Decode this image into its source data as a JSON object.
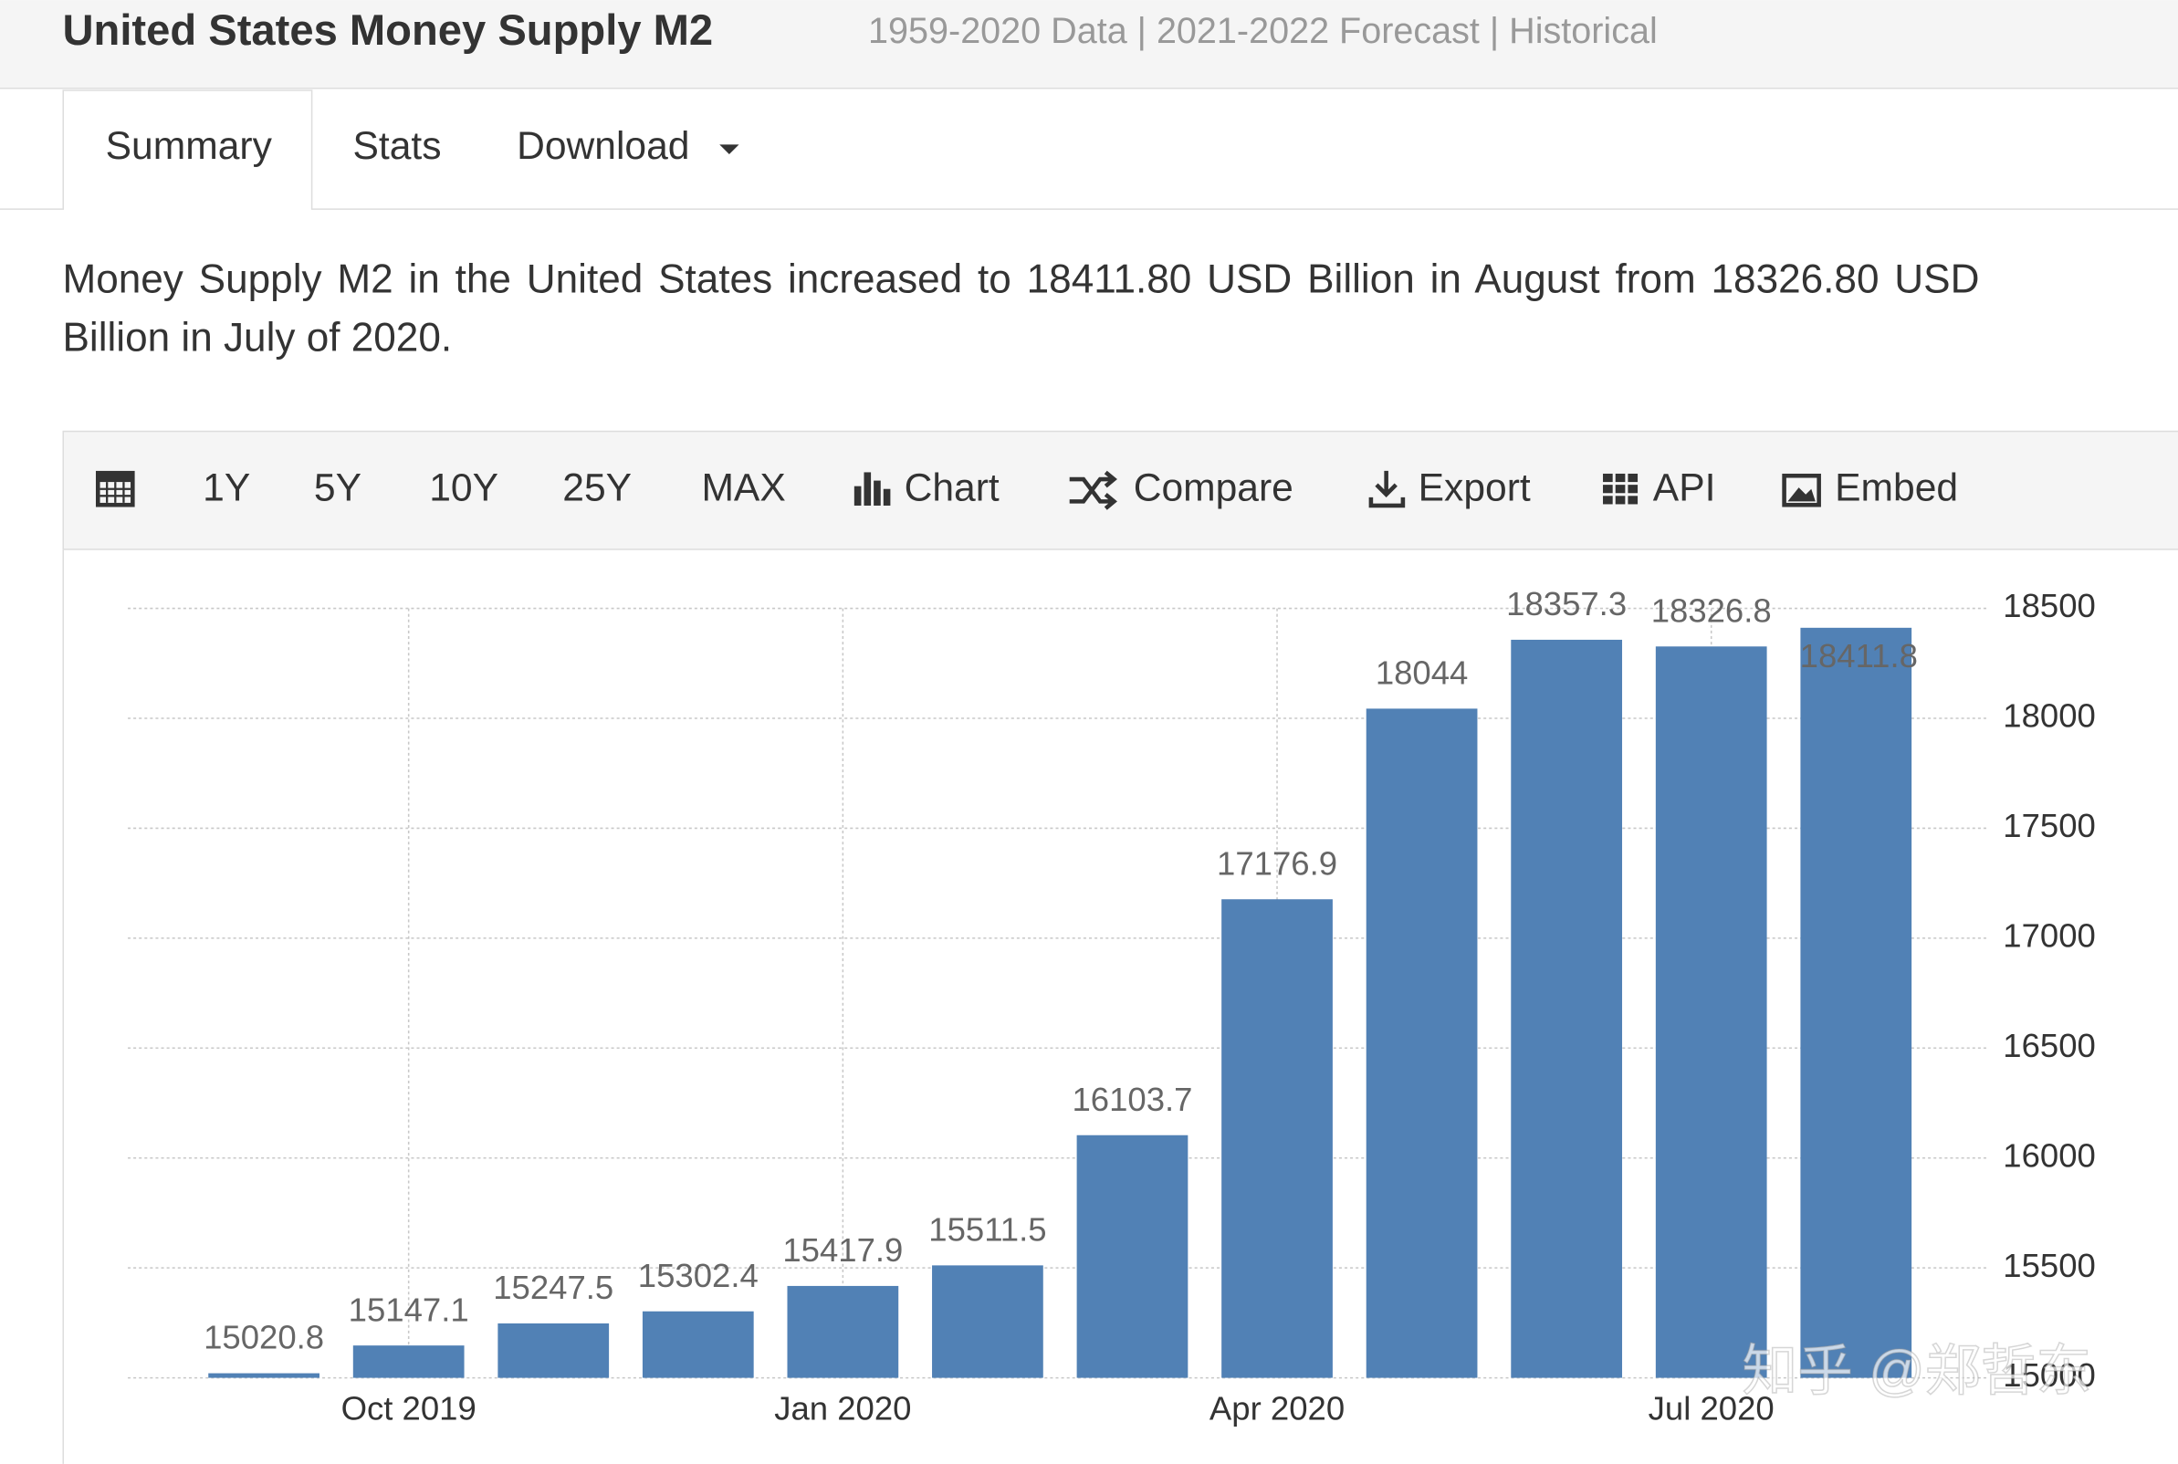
{
  "header": {
    "title": "United States Money Supply M2",
    "subtitle": "1959-2020 Data | 2021-2022 Forecast | Historical"
  },
  "tabs": [
    "Summary",
    "Stats",
    "Download"
  ],
  "description_lines": [
    "Money Supply M2 in the United States increased to 18411.80 USD Billion in August from 18326.80 USD",
    "Billion in July of 2020."
  ],
  "toolbar": [
    "1Y",
    "5Y",
    "10Y",
    "25Y",
    "MAX",
    "Chart",
    "Compare",
    "Export",
    "API",
    "Embed"
  ],
  "watermark": "知乎 @郑哲东",
  "chart_data": {
    "type": "bar",
    "categories": [
      null,
      "Oct 2019",
      null,
      null,
      "Jan 2020",
      null,
      null,
      "Apr 2020",
      null,
      null,
      "Jul 2020",
      null
    ],
    "values": [
      15020.8,
      15147.1,
      15247.5,
      15302.4,
      15417.9,
      15511.5,
      16103.7,
      17176.9,
      18044,
      18357.3,
      18326.8,
      18411.8
    ],
    "color": "#5181b5",
    "ylim": [
      15000,
      18500
    ],
    "yticks": [
      15000,
      15500,
      16000,
      16500,
      17000,
      17500,
      18000,
      18500
    ],
    "grid": true
  }
}
